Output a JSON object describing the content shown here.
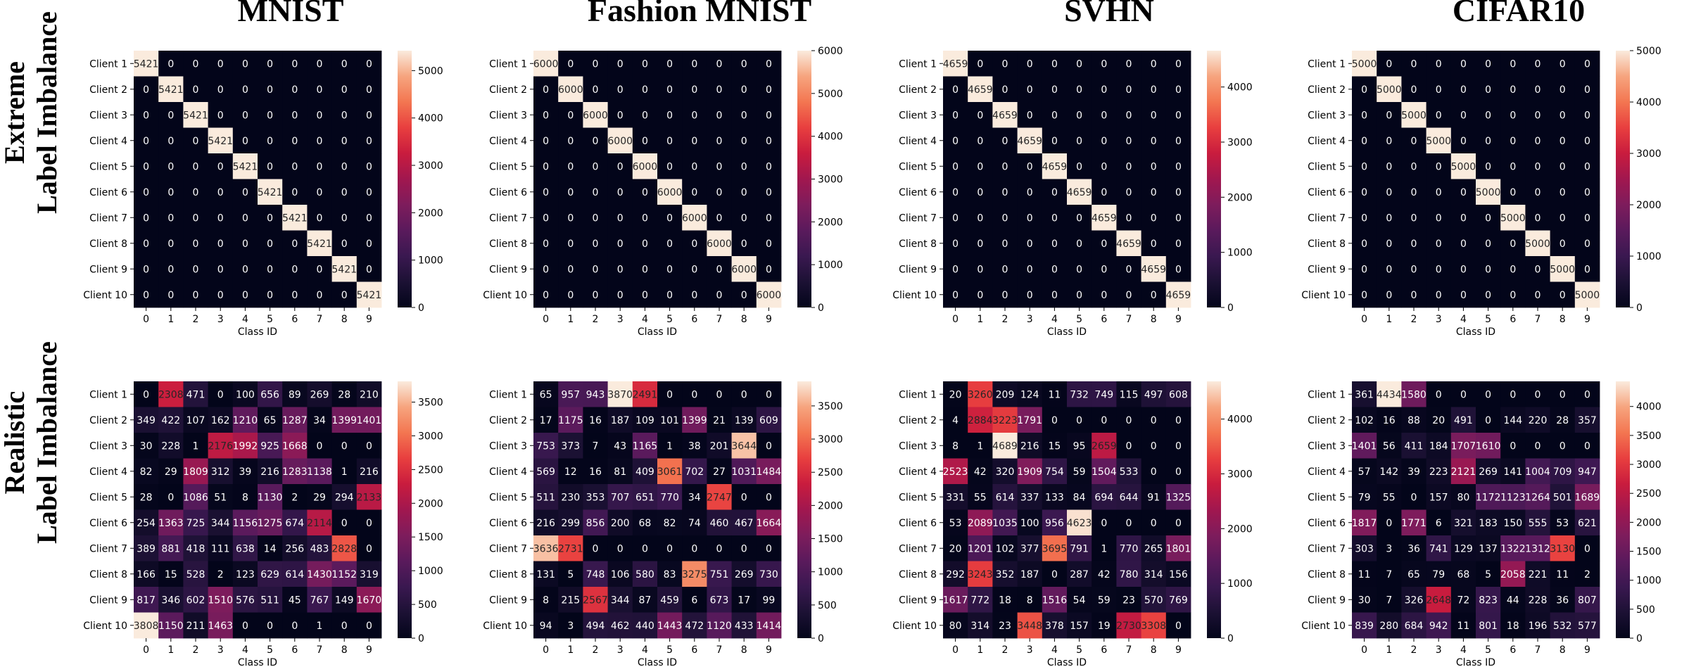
{
  "column_titles": [
    "MNIST",
    "Fashion MNIST",
    "SVHN",
    "CIFAR10"
  ],
  "row_titles": [
    [
      "Extreme",
      "Label Imbalance"
    ],
    [
      "Realistic",
      "Label Imbalance"
    ]
  ],
  "colors": {
    "low": "#03051a",
    "high": "#faebdd"
  },
  "chart_data": [
    {
      "type": "heatmap",
      "title": "MNIST",
      "row_label": "Extreme Label Imbalance",
      "xlabel": "Class ID",
      "x": [
        "0",
        "1",
        "2",
        "3",
        "4",
        "5",
        "6",
        "7",
        "8",
        "9"
      ],
      "y": [
        "Client 1",
        "Client 2",
        "Client 3",
        "Client 4",
        "Client 5",
        "Client 6",
        "Client 7",
        "Client 8",
        "Client 9",
        "Client 10"
      ],
      "values": [
        [
          5421,
          0,
          0,
          0,
          0,
          0,
          0,
          0,
          0,
          0
        ],
        [
          0,
          5421,
          0,
          0,
          0,
          0,
          0,
          0,
          0,
          0
        ],
        [
          0,
          0,
          5421,
          0,
          0,
          0,
          0,
          0,
          0,
          0
        ],
        [
          0,
          0,
          0,
          5421,
          0,
          0,
          0,
          0,
          0,
          0
        ],
        [
          0,
          0,
          0,
          0,
          5421,
          0,
          0,
          0,
          0,
          0
        ],
        [
          0,
          0,
          0,
          0,
          0,
          5421,
          0,
          0,
          0,
          0
        ],
        [
          0,
          0,
          0,
          0,
          0,
          0,
          5421,
          0,
          0,
          0
        ],
        [
          0,
          0,
          0,
          0,
          0,
          0,
          0,
          5421,
          0,
          0
        ],
        [
          0,
          0,
          0,
          0,
          0,
          0,
          0,
          0,
          5421,
          0
        ],
        [
          0,
          0,
          0,
          0,
          0,
          0,
          0,
          0,
          0,
          5421
        ]
      ],
      "vmax": 5421,
      "colorbar_ticks": [
        0,
        1000,
        2000,
        3000,
        4000,
        5000
      ]
    },
    {
      "type": "heatmap",
      "title": "Fashion MNIST",
      "row_label": "Extreme Label Imbalance",
      "xlabel": "Class ID",
      "x": [
        "0",
        "1",
        "2",
        "3",
        "4",
        "5",
        "6",
        "7",
        "8",
        "9"
      ],
      "y": [
        "Client 1",
        "Client 2",
        "Client 3",
        "Client 4",
        "Client 5",
        "Client 6",
        "Client 7",
        "Client 8",
        "Client 9",
        "Client 10"
      ],
      "values": [
        [
          6000,
          0,
          0,
          0,
          0,
          0,
          0,
          0,
          0,
          0
        ],
        [
          0,
          6000,
          0,
          0,
          0,
          0,
          0,
          0,
          0,
          0
        ],
        [
          0,
          0,
          6000,
          0,
          0,
          0,
          0,
          0,
          0,
          0
        ],
        [
          0,
          0,
          0,
          6000,
          0,
          0,
          0,
          0,
          0,
          0
        ],
        [
          0,
          0,
          0,
          0,
          6000,
          0,
          0,
          0,
          0,
          0
        ],
        [
          0,
          0,
          0,
          0,
          0,
          6000,
          0,
          0,
          0,
          0
        ],
        [
          0,
          0,
          0,
          0,
          0,
          0,
          6000,
          0,
          0,
          0
        ],
        [
          0,
          0,
          0,
          0,
          0,
          0,
          0,
          6000,
          0,
          0
        ],
        [
          0,
          0,
          0,
          0,
          0,
          0,
          0,
          0,
          6000,
          0
        ],
        [
          0,
          0,
          0,
          0,
          0,
          0,
          0,
          0,
          0,
          6000
        ]
      ],
      "vmax": 6000,
      "colorbar_ticks": [
        0,
        1000,
        2000,
        3000,
        4000,
        5000,
        6000
      ]
    },
    {
      "type": "heatmap",
      "title": "SVHN",
      "row_label": "Extreme Label Imbalance",
      "xlabel": "Class ID",
      "x": [
        "0",
        "1",
        "2",
        "3",
        "4",
        "5",
        "6",
        "7",
        "8",
        "9"
      ],
      "y": [
        "Client 1",
        "Client 2",
        "Client 3",
        "Client 4",
        "Client 5",
        "Client 6",
        "Client 7",
        "Client 8",
        "Client 9",
        "Client 10"
      ],
      "values": [
        [
          4659,
          0,
          0,
          0,
          0,
          0,
          0,
          0,
          0,
          0
        ],
        [
          0,
          4659,
          0,
          0,
          0,
          0,
          0,
          0,
          0,
          0
        ],
        [
          0,
          0,
          4659,
          0,
          0,
          0,
          0,
          0,
          0,
          0
        ],
        [
          0,
          0,
          0,
          4659,
          0,
          0,
          0,
          0,
          0,
          0
        ],
        [
          0,
          0,
          0,
          0,
          4659,
          0,
          0,
          0,
          0,
          0
        ],
        [
          0,
          0,
          0,
          0,
          0,
          4659,
          0,
          0,
          0,
          0
        ],
        [
          0,
          0,
          0,
          0,
          0,
          0,
          4659,
          0,
          0,
          0
        ],
        [
          0,
          0,
          0,
          0,
          0,
          0,
          0,
          4659,
          0,
          0
        ],
        [
          0,
          0,
          0,
          0,
          0,
          0,
          0,
          0,
          4659,
          0
        ],
        [
          0,
          0,
          0,
          0,
          0,
          0,
          0,
          0,
          0,
          4659
        ]
      ],
      "vmax": 4659,
      "colorbar_ticks": [
        0,
        1000,
        2000,
        3000,
        4000
      ]
    },
    {
      "type": "heatmap",
      "title": "CIFAR10",
      "row_label": "Extreme Label Imbalance",
      "xlabel": "Class ID",
      "x": [
        "0",
        "1",
        "2",
        "3",
        "4",
        "5",
        "6",
        "7",
        "8",
        "9"
      ],
      "y": [
        "Client 1",
        "Client 2",
        "Client 3",
        "Client 4",
        "Client 5",
        "Client 6",
        "Client 7",
        "Client 8",
        "Client 9",
        "Client 10"
      ],
      "values": [
        [
          5000,
          0,
          0,
          0,
          0,
          0,
          0,
          0,
          0,
          0
        ],
        [
          0,
          5000,
          0,
          0,
          0,
          0,
          0,
          0,
          0,
          0
        ],
        [
          0,
          0,
          5000,
          0,
          0,
          0,
          0,
          0,
          0,
          0
        ],
        [
          0,
          0,
          0,
          5000,
          0,
          0,
          0,
          0,
          0,
          0
        ],
        [
          0,
          0,
          0,
          0,
          5000,
          0,
          0,
          0,
          0,
          0
        ],
        [
          0,
          0,
          0,
          0,
          0,
          5000,
          0,
          0,
          0,
          0
        ],
        [
          0,
          0,
          0,
          0,
          0,
          0,
          5000,
          0,
          0,
          0
        ],
        [
          0,
          0,
          0,
          0,
          0,
          0,
          0,
          5000,
          0,
          0
        ],
        [
          0,
          0,
          0,
          0,
          0,
          0,
          0,
          0,
          5000,
          0
        ],
        [
          0,
          0,
          0,
          0,
          0,
          0,
          0,
          0,
          0,
          5000
        ]
      ],
      "vmax": 5000,
      "colorbar_ticks": [
        0,
        1000,
        2000,
        3000,
        4000,
        5000
      ]
    },
    {
      "type": "heatmap",
      "title": "MNIST",
      "row_label": "Realistic Label Imbalance",
      "xlabel": "Class ID",
      "x": [
        "0",
        "1",
        "2",
        "3",
        "4",
        "5",
        "6",
        "7",
        "8",
        "9"
      ],
      "y": [
        "Client 1",
        "Client 2",
        "Client 3",
        "Client 4",
        "Client 5",
        "Client 6",
        "Client 7",
        "Client 8",
        "Client 9",
        "Client 10"
      ],
      "values": [
        [
          0,
          2308,
          471,
          0,
          100,
          656,
          89,
          269,
          28,
          210
        ],
        [
          349,
          422,
          107,
          162,
          1210,
          65,
          1287,
          34,
          1399,
          1401
        ],
        [
          30,
          228,
          1,
          2176,
          1992,
          925,
          1668,
          0,
          0,
          0
        ],
        [
          82,
          29,
          1809,
          312,
          39,
          216,
          1283,
          1138,
          1,
          216
        ],
        [
          28,
          0,
          1086,
          51,
          8,
          1130,
          2,
          29,
          294,
          2133
        ],
        [
          254,
          1363,
          725,
          344,
          1156,
          1275,
          674,
          2114,
          0,
          0
        ],
        [
          389,
          881,
          418,
          111,
          638,
          14,
          256,
          483,
          2828,
          0
        ],
        [
          166,
          15,
          528,
          2,
          123,
          629,
          614,
          1430,
          1152,
          319
        ],
        [
          817,
          346,
          602,
          1510,
          576,
          511,
          45,
          767,
          149,
          1670
        ],
        [
          3808,
          1150,
          211,
          1463,
          0,
          0,
          0,
          1,
          0,
          0
        ]
      ],
      "vmax": 3808,
      "colorbar_ticks": [
        0,
        500,
        1000,
        1500,
        2000,
        2500,
        3000,
        3500
      ]
    },
    {
      "type": "heatmap",
      "title": "Fashion MNIST",
      "row_label": "Realistic Label Imbalance",
      "xlabel": "Class ID",
      "x": [
        "0",
        "1",
        "2",
        "3",
        "4",
        "5",
        "6",
        "7",
        "8",
        "9"
      ],
      "y": [
        "Client 1",
        "Client 2",
        "Client 3",
        "Client 4",
        "Client 5",
        "Client 6",
        "Client 7",
        "Client 8",
        "Client 9",
        "Client 10"
      ],
      "values": [
        [
          65,
          957,
          943,
          3870,
          2491,
          0,
          0,
          0,
          0,
          0
        ],
        [
          17,
          1175,
          16,
          187,
          109,
          101,
          1399,
          21,
          139,
          609
        ],
        [
          753,
          373,
          7,
          43,
          1165,
          1,
          38,
          201,
          3644,
          0
        ],
        [
          569,
          12,
          16,
          81,
          409,
          3061,
          702,
          27,
          1031,
          1484
        ],
        [
          511,
          230,
          353,
          707,
          651,
          770,
          34,
          2747,
          0,
          0
        ],
        [
          216,
          299,
          856,
          200,
          68,
          82,
          74,
          460,
          467,
          1664
        ],
        [
          3636,
          2731,
          0,
          0,
          0,
          0,
          0,
          0,
          0,
          0
        ],
        [
          131,
          5,
          748,
          106,
          580,
          83,
          3275,
          751,
          269,
          730
        ],
        [
          8,
          215,
          2567,
          344,
          87,
          459,
          6,
          673,
          17,
          99
        ],
        [
          94,
          3,
          494,
          462,
          440,
          1443,
          472,
          1120,
          433,
          1414
        ]
      ],
      "vmax": 3870,
      "colorbar_ticks": [
        0,
        500,
        1000,
        1500,
        2000,
        2500,
        3000,
        3500
      ]
    },
    {
      "type": "heatmap",
      "title": "SVHN",
      "row_label": "Realistic Label Imbalance",
      "xlabel": "Class ID",
      "x": [
        "0",
        "1",
        "2",
        "3",
        "4",
        "5",
        "6",
        "7",
        "8",
        "9"
      ],
      "y": [
        "Client 1",
        "Client 2",
        "Client 3",
        "Client 4",
        "Client 5",
        "Client 6",
        "Client 7",
        "Client 8",
        "Client 9",
        "Client 10"
      ],
      "values": [
        [
          20,
          3260,
          209,
          124,
          11,
          732,
          749,
          115,
          497,
          608
        ],
        [
          4,
          2884,
          3223,
          1791,
          0,
          0,
          0,
          0,
          0,
          0
        ],
        [
          8,
          1,
          4689,
          216,
          15,
          95,
          2659,
          0,
          0,
          0
        ],
        [
          2523,
          42,
          320,
          1909,
          754,
          59,
          1504,
          533,
          0,
          0
        ],
        [
          331,
          55,
          614,
          337,
          133,
          84,
          694,
          644,
          91,
          1325
        ],
        [
          53,
          2089,
          1035,
          100,
          956,
          4623,
          0,
          0,
          0,
          0
        ],
        [
          20,
          1201,
          102,
          377,
          3695,
          791,
          1,
          770,
          265,
          1801
        ],
        [
          292,
          3243,
          352,
          187,
          0,
          287,
          42,
          780,
          314,
          156
        ],
        [
          1617,
          772,
          18,
          8,
          1516,
          54,
          59,
          23,
          570,
          769
        ],
        [
          80,
          314,
          23,
          3448,
          378,
          157,
          19,
          2730,
          3308,
          0
        ]
      ],
      "vmax": 4689,
      "colorbar_ticks": [
        0,
        1000,
        2000,
        3000,
        4000
      ]
    },
    {
      "type": "heatmap",
      "title": "CIFAR10",
      "row_label": "Realistic Label Imbalance",
      "xlabel": "Class ID",
      "x": [
        "0",
        "1",
        "2",
        "3",
        "4",
        "5",
        "6",
        "7",
        "8",
        "9"
      ],
      "y": [
        "Client 1",
        "Client 2",
        "Client 3",
        "Client 4",
        "Client 5",
        "Client 6",
        "Client 7",
        "Client 8",
        "Client 9",
        "Client 10"
      ],
      "values": [
        [
          361,
          4434,
          1580,
          0,
          0,
          0,
          0,
          0,
          0,
          0
        ],
        [
          102,
          16,
          88,
          20,
          491,
          0,
          144,
          220,
          28,
          357
        ],
        [
          1401,
          56,
          411,
          184,
          1707,
          1610,
          0,
          0,
          0,
          0
        ],
        [
          57,
          142,
          39,
          223,
          2121,
          269,
          141,
          1004,
          709,
          947
        ],
        [
          79,
          55,
          0,
          157,
          80,
          1172,
          1123,
          1264,
          501,
          1689
        ],
        [
          1817,
          0,
          1771,
          6,
          321,
          183,
          150,
          555,
          53,
          621
        ],
        [
          303,
          3,
          36,
          741,
          129,
          137,
          1322,
          1312,
          3130,
          0
        ],
        [
          11,
          7,
          65,
          79,
          68,
          5,
          2058,
          221,
          11,
          2
        ],
        [
          30,
          7,
          326,
          2648,
          72,
          823,
          44,
          228,
          36,
          807
        ],
        [
          839,
          280,
          684,
          942,
          11,
          801,
          18,
          196,
          532,
          577
        ]
      ],
      "vmax": 4434,
      "colorbar_ticks": [
        0,
        500,
        1000,
        1500,
        2000,
        2500,
        3000,
        3500,
        4000
      ]
    }
  ]
}
